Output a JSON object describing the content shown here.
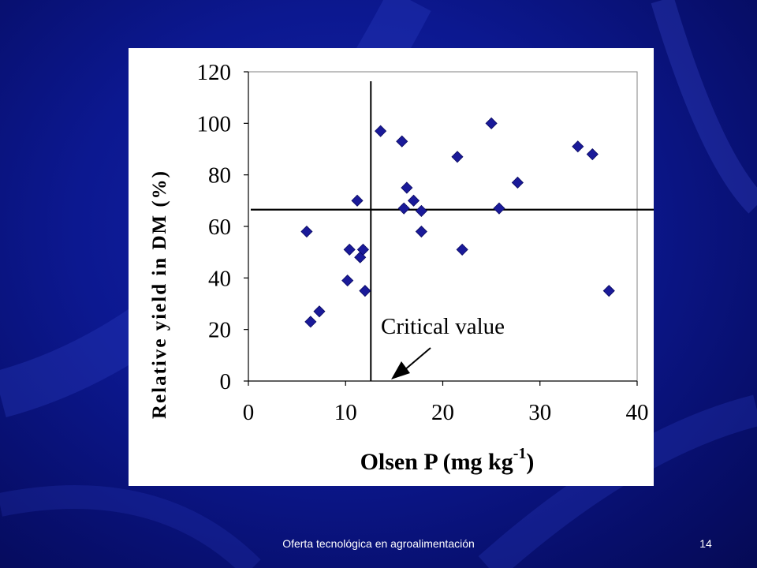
{
  "footer": {
    "title": "Oferta tecnológica en agroalimentación",
    "page_number": "14"
  },
  "colors": {
    "background": "#0c1890",
    "marker": "#1a1a99",
    "axis": "#000000"
  },
  "chart_data": {
    "type": "scatter",
    "marker": "diamond",
    "xlabel": "Olsen P (mg kg-1)",
    "xlabel_parts": {
      "main": "Olsen P (mg kg",
      "superscript": "-1",
      "end": ")"
    },
    "ylabel": "Relative yield in DM (%)",
    "xlim": [
      0,
      40
    ],
    "ylim": [
      0,
      120
    ],
    "x_ticks": [
      "0",
      "10",
      "20",
      "30",
      "40"
    ],
    "y_ticks": [
      "0",
      "20",
      "40",
      "60",
      "80",
      "100",
      "120"
    ],
    "grid": false,
    "critical_lines": {
      "x": 12.6,
      "y": 66.5
    },
    "annotation": "Critical value",
    "points": [
      {
        "x": 6.0,
        "y": 58
      },
      {
        "x": 6.4,
        "y": 23
      },
      {
        "x": 7.3,
        "y": 27
      },
      {
        "x": 10.2,
        "y": 39
      },
      {
        "x": 10.4,
        "y": 51
      },
      {
        "x": 11.2,
        "y": 70
      },
      {
        "x": 11.5,
        "y": 48
      },
      {
        "x": 11.8,
        "y": 51
      },
      {
        "x": 12.0,
        "y": 35
      },
      {
        "x": 13.6,
        "y": 97
      },
      {
        "x": 15.8,
        "y": 93
      },
      {
        "x": 16.0,
        "y": 67
      },
      {
        "x": 16.3,
        "y": 75
      },
      {
        "x": 17.0,
        "y": 70
      },
      {
        "x": 17.8,
        "y": 66
      },
      {
        "x": 17.8,
        "y": 58
      },
      {
        "x": 21.5,
        "y": 87
      },
      {
        "x": 22.0,
        "y": 51
      },
      {
        "x": 25.0,
        "y": 100
      },
      {
        "x": 25.8,
        "y": 67
      },
      {
        "x": 27.7,
        "y": 77
      },
      {
        "x": 33.9,
        "y": 91
      },
      {
        "x": 35.4,
        "y": 88
      },
      {
        "x": 37.1,
        "y": 35
      }
    ]
  }
}
